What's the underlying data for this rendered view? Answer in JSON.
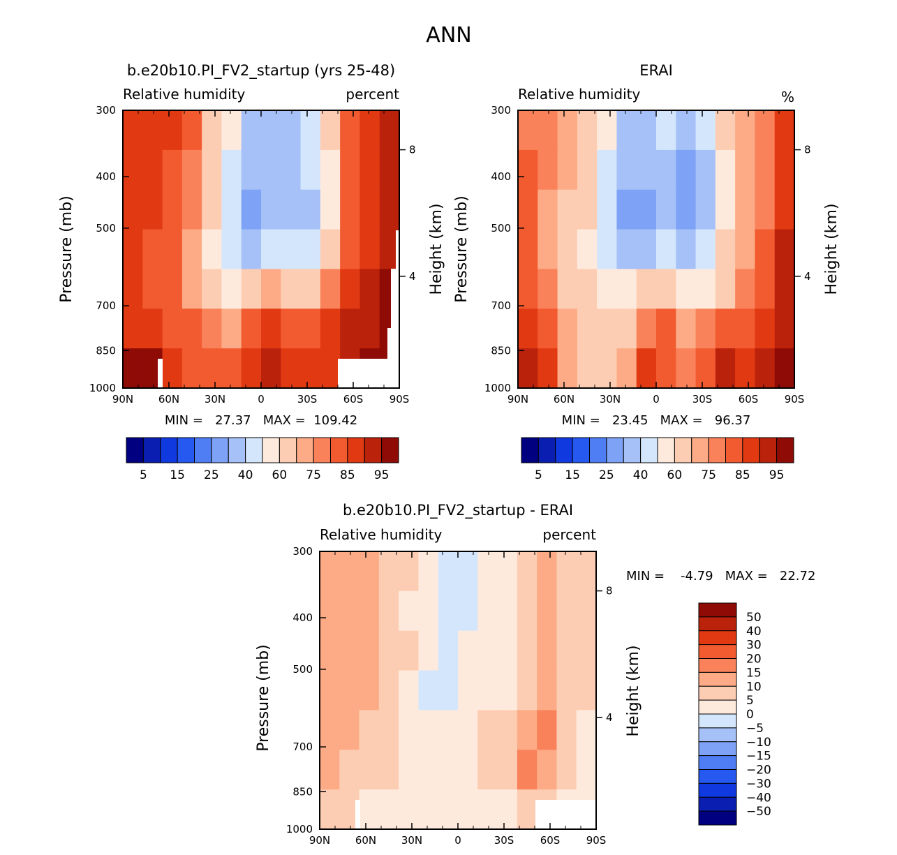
{
  "figure": {
    "title": "ANN"
  },
  "colors": {
    "abs_scale": [
      "#000080",
      "#0a1fb2",
      "#1139e0",
      "#2659f0",
      "#4f7ef4",
      "#7ea2f5",
      "#a6c1f7",
      "#d4e6fb",
      "#feeadc",
      "#fdcdb3",
      "#fcab86",
      "#f9825a",
      "#f25a30",
      "#e13a12",
      "#bb220b",
      "#8f0b06"
    ],
    "diff_scale": [
      "#000080",
      "#0a1fb2",
      "#1139e0",
      "#2659f0",
      "#4f7ef4",
      "#7ea2f5",
      "#a6c1f7",
      "#d4e6fb",
      "#feeadc",
      "#fdcdb3",
      "#fcab86",
      "#f9825a",
      "#f25a30",
      "#e13a12",
      "#bb220b",
      "#8f0b06"
    ]
  },
  "chart_data": [
    {
      "type": "heatmap",
      "title": "b.e20b10.PI_FV2_startup (yrs 25-48)",
      "left_label": "Relative humidity",
      "right_label": "percent",
      "ylabel": "Pressure (mb)",
      "y2label": "Height (km)",
      "x_ticks": [
        "90N",
        "60N",
        "30N",
        "0",
        "30S",
        "60S",
        "90S"
      ],
      "x_values": [
        90,
        60,
        30,
        0,
        -30,
        -60,
        -90
      ],
      "y_ticks": [
        300,
        400,
        500,
        700,
        850,
        1000
      ],
      "y2_ticks": [
        8,
        4
      ],
      "ylim": [
        1000,
        300
      ],
      "stats": "MIN =   27.37   MAX =  109.42",
      "colorbar_labels": [
        "5",
        "15",
        "25",
        "40",
        "60",
        "75",
        "85",
        "95"
      ],
      "grid": [
        [
          87,
          86,
          85,
          80,
          68,
          50,
          36,
          30,
          33,
          46,
          62,
          80,
          88,
          92
        ],
        [
          88,
          86,
          84,
          78,
          64,
          44,
          30,
          31,
          30,
          40,
          58,
          80,
          88,
          93
        ],
        [
          87,
          85,
          83,
          76,
          60,
          40,
          28,
          36,
          31,
          38,
          58,
          80,
          88,
          93
        ],
        [
          86,
          84,
          82,
          74,
          58,
          44,
          38,
          45,
          40,
          46,
          64,
          82,
          89,
          94
        ],
        [
          85,
          83,
          80,
          74,
          64,
          58,
          60,
          70,
          66,
          68,
          76,
          86,
          90,
          95
        ],
        [
          88,
          86,
          82,
          80,
          76,
          74,
          80,
          85,
          82,
          84,
          86,
          90,
          94,
          97
        ],
        [
          102,
          99,
          86,
          80,
          82,
          84,
          88,
          90,
          88,
          86,
          85,
          90,
          95,
          98
        ]
      ]
    },
    {
      "type": "heatmap",
      "title": "ERAI",
      "left_label": "Relative humidity",
      "right_label": "%",
      "ylabel": "Pressure (mb)",
      "y2label": "Height (km)",
      "x_ticks": [
        "90N",
        "60N",
        "30N",
        "0",
        "30S",
        "60S",
        "90S"
      ],
      "x_values": [
        90,
        60,
        30,
        0,
        -30,
        -60,
        -90
      ],
      "y_ticks": [
        300,
        400,
        500,
        700,
        850,
        1000
      ],
      "y2_ticks": [
        8,
        4
      ],
      "ylim": [
        1000,
        300
      ],
      "stats": "MIN =   23.45   MAX =   96.37",
      "colorbar_labels": [
        "5",
        "15",
        "25",
        "40",
        "60",
        "75",
        "85",
        "95"
      ],
      "grid": [
        [
          75,
          78,
          74,
          66,
          52,
          36,
          30,
          40,
          34,
          45,
          60,
          70,
          78,
          88
        ],
        [
          80,
          76,
          70,
          62,
          46,
          32,
          30,
          34,
          27,
          36,
          56,
          70,
          78,
          88
        ],
        [
          80,
          74,
          68,
          60,
          44,
          28,
          26,
          38,
          26,
          34,
          56,
          70,
          78,
          88
        ],
        [
          80,
          72,
          64,
          58,
          46,
          36,
          38,
          46,
          34,
          40,
          60,
          72,
          80,
          90
        ],
        [
          84,
          76,
          68,
          62,
          56,
          52,
          60,
          68,
          56,
          58,
          66,
          76,
          84,
          92
        ],
        [
          86,
          80,
          70,
          64,
          62,
          68,
          78,
          82,
          72,
          76,
          80,
          84,
          88,
          94
        ],
        [
          92,
          86,
          72,
          64,
          62,
          72,
          88,
          84,
          76,
          84,
          90,
          86,
          90,
          96
        ]
      ]
    },
    {
      "type": "heatmap",
      "title": "b.e20b10.PI_FV2_startup - ERAI",
      "left_label": "Relative humidity",
      "right_label": "percent",
      "ylabel": "Pressure (mb)",
      "y2label": "Height (km)",
      "x_ticks": [
        "90N",
        "60N",
        "30N",
        "0",
        "30S",
        "60S",
        "90S"
      ],
      "x_values": [
        90,
        60,
        30,
        0,
        -30,
        -60,
        -90
      ],
      "y_ticks": [
        300,
        400,
        500,
        700,
        850,
        1000
      ],
      "y2_ticks": [
        8,
        4
      ],
      "ylim": [
        1000,
        300
      ],
      "stats": "MIN =    -4.79   MAX =   22.72",
      "colorbar_labels": [
        "50",
        "40",
        "30",
        "20",
        "15",
        "10",
        "5",
        "0",
        "-5",
        "-10",
        "-15",
        "-20",
        "-30",
        "-40",
        "-50"
      ],
      "grid": [
        [
          12,
          12,
          10,
          8,
          6,
          3,
          -2,
          -3,
          2,
          4,
          6,
          10,
          8,
          6
        ],
        [
          12,
          11,
          10,
          8,
          4,
          2,
          -1,
          -3,
          2,
          3,
          6,
          11,
          8,
          5
        ],
        [
          11,
          11,
          10,
          8,
          5,
          1,
          -2,
          1,
          3,
          3,
          7,
          13,
          8,
          6
        ],
        [
          11,
          10,
          10,
          8,
          4,
          -1,
          -2,
          2,
          4,
          4,
          8,
          14,
          8,
          5
        ],
        [
          10,
          10,
          8,
          6,
          4,
          1,
          1,
          3,
          5,
          6,
          14,
          18,
          7,
          4
        ],
        [
          10,
          9,
          7,
          5,
          3,
          1,
          2,
          3,
          5,
          6,
          16,
          14,
          6,
          3
        ],
        [
          8,
          6,
          4,
          3,
          2,
          2,
          2,
          3,
          4,
          4,
          5,
          6,
          4,
          2
        ]
      ]
    }
  ]
}
